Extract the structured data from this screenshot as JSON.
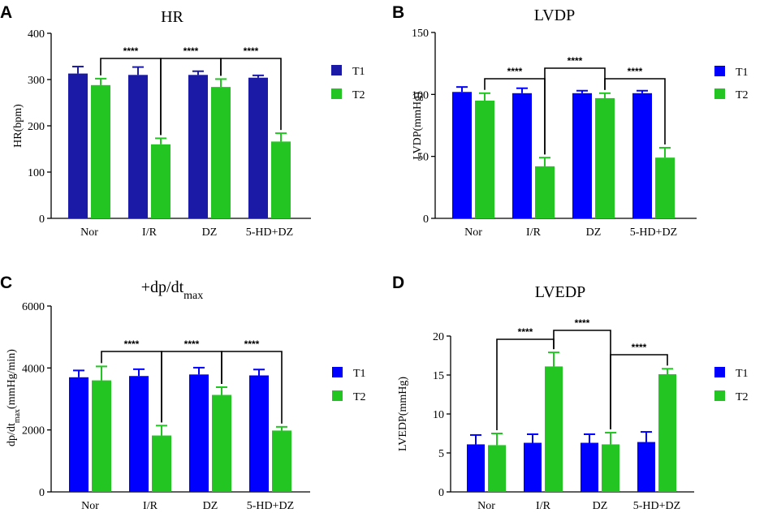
{
  "chart_data": [
    {
      "type": "bar",
      "panel": "A",
      "title": "HR",
      "title_sub": "",
      "ylabel": "HR(bpm)",
      "ylabel_sub": "",
      "ylabel_suffix": "",
      "xlabel": "",
      "categories": [
        "Nor",
        "I/R",
        "DZ",
        "5-HD+DZ"
      ],
      "ylim": [
        0,
        400
      ],
      "yticks": [
        0,
        100,
        200,
        300,
        400
      ],
      "ytick_labels": [
        "0",
        "100",
        "200",
        "300",
        "400"
      ],
      "colors": [
        "#1a1aa6",
        "#22c522"
      ],
      "series": [
        {
          "name": "T1",
          "values": [
            313,
            310,
            310,
            304
          ],
          "errors": [
            15,
            17,
            8,
            5
          ]
        },
        {
          "name": "T2",
          "values": [
            288,
            160,
            284,
            166
          ],
          "errors": [
            14,
            13,
            17,
            18
          ]
        }
      ],
      "significance": [
        {
          "label": "****",
          "from": [
            0,
            1
          ],
          "to": [
            1,
            1
          ]
        },
        {
          "label": "****",
          "from": [
            1,
            1
          ],
          "to": [
            2,
            1
          ]
        },
        {
          "label": "****",
          "from": [
            2,
            1
          ],
          "to": [
            3,
            1
          ]
        }
      ]
    },
    {
      "type": "bar",
      "panel": "B",
      "title": "LVDP",
      "title_sub": "",
      "ylabel": "LVDP(mmHg)",
      "ylabel_sub": "",
      "ylabel_suffix": "",
      "xlabel": "",
      "categories": [
        "Nor",
        "I/R",
        "DZ",
        "5-HD+DZ"
      ],
      "ylim": [
        0,
        150
      ],
      "yticks": [
        0,
        50,
        100,
        150
      ],
      "ytick_labels": [
        "0",
        "50",
        "100",
        "150"
      ],
      "colors": [
        "#0000ff",
        "#22c522"
      ],
      "series": [
        {
          "name": "T1",
          "values": [
            102,
            101,
            101,
            101
          ],
          "errors": [
            4,
            4,
            2,
            2
          ]
        },
        {
          "name": "T2",
          "values": [
            95,
            42,
            97,
            49
          ],
          "errors": [
            6,
            7,
            4,
            8
          ]
        }
      ],
      "significance": [
        {
          "label": "****",
          "from": [
            0,
            1
          ],
          "to": [
            1,
            1
          ]
        },
        {
          "label": "****",
          "from": [
            1,
            1
          ],
          "to": [
            2,
            1
          ]
        },
        {
          "label": "****",
          "from": [
            2,
            1
          ],
          "to": [
            3,
            1
          ]
        }
      ]
    },
    {
      "type": "bar",
      "panel": "C",
      "title": "+dp/dt",
      "title_sub": "max",
      "ylabel": "dp/dt",
      "ylabel_sub": "max",
      "ylabel_suffix": "(mmHg/min)",
      "xlabel": "",
      "categories": [
        "Nor",
        "I/R",
        "DZ",
        "5-HD+DZ"
      ],
      "ylim": [
        0,
        6000
      ],
      "yticks": [
        0,
        2000,
        4000,
        6000
      ],
      "ytick_labels": [
        "0",
        "2000",
        "4000",
        "6000"
      ],
      "colors": [
        "#0000ff",
        "#22c522"
      ],
      "series": [
        {
          "name": "T1",
          "values": [
            3700,
            3740,
            3790,
            3760
          ],
          "errors": [
            220,
            220,
            220,
            190
          ]
        },
        {
          "name": "T2",
          "values": [
            3600,
            1820,
            3130,
            1980
          ],
          "errors": [
            450,
            320,
            250,
            120
          ]
        }
      ],
      "significance": [
        {
          "label": "****",
          "from": [
            0,
            1
          ],
          "to": [
            1,
            1
          ]
        },
        {
          "label": "****",
          "from": [
            1,
            1
          ],
          "to": [
            2,
            1
          ]
        },
        {
          "label": "****",
          "from": [
            2,
            1
          ],
          "to": [
            3,
            1
          ]
        }
      ]
    },
    {
      "type": "bar",
      "panel": "D",
      "title": "LVEDP",
      "title_sub": "",
      "ylabel": "LVEDP(mmHg)",
      "ylabel_sub": "",
      "ylabel_suffix": "",
      "xlabel": "",
      "categories": [
        "Nor",
        "I/R",
        "DZ",
        "5-HD+DZ"
      ],
      "ylim": [
        0,
        20
      ],
      "yticks": [
        0,
        5,
        10,
        15,
        20
      ],
      "ytick_labels": [
        "0",
        "5",
        "10",
        "15",
        "20"
      ],
      "colors": [
        "#0000ff",
        "#22c522"
      ],
      "series": [
        {
          "name": "T1",
          "values": [
            6.1,
            6.3,
            6.3,
            6.4
          ],
          "errors": [
            1.2,
            1.1,
            1.1,
            1.3
          ]
        },
        {
          "name": "T2",
          "values": [
            6.0,
            16.1,
            6.1,
            15.1
          ],
          "errors": [
            1.5,
            1.8,
            1.5,
            0.7
          ]
        }
      ],
      "significance": [
        {
          "label": "****",
          "from": [
            0,
            1
          ],
          "to": [
            1,
            1
          ]
        },
        {
          "label": "****",
          "from": [
            1,
            1
          ],
          "to": [
            2,
            1
          ]
        },
        {
          "label": "****",
          "from": [
            2,
            1
          ],
          "to": [
            3,
            1
          ]
        }
      ]
    }
  ]
}
